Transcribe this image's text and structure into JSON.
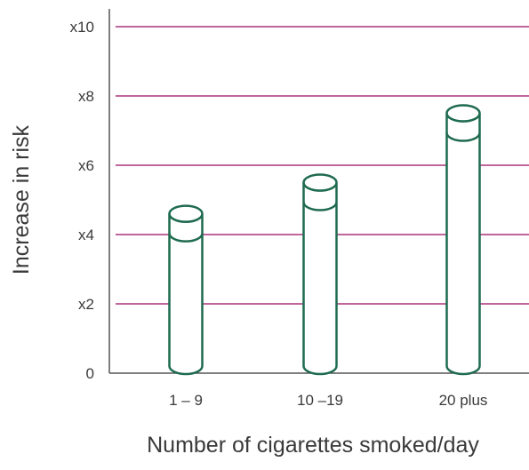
{
  "colors": {
    "gridline": "#c0669c",
    "axis": "#555555",
    "bar_stroke": "#1e6b4f",
    "bar_fill": "#ffffff",
    "text": "#3a3a3a"
  },
  "chart_data": {
    "type": "bar",
    "style": "cylinder",
    "categories": [
      "1 – 9",
      "10 –19",
      "20 plus"
    ],
    "values": [
      4.6,
      5.5,
      7.5
    ],
    "xlabel": "Number of cigarettes smoked/day",
    "ylabel": "Increase in risk",
    "ylim": [
      0,
      10
    ],
    "yticks": [
      {
        "value": 0,
        "label": "0"
      },
      {
        "value": 2,
        "label": "x2"
      },
      {
        "value": 4,
        "label": "x4"
      },
      {
        "value": 6,
        "label": "x6"
      },
      {
        "value": 8,
        "label": "x8"
      },
      {
        "value": 10,
        "label": "x10"
      }
    ],
    "grid": true,
    "legend": "none"
  }
}
